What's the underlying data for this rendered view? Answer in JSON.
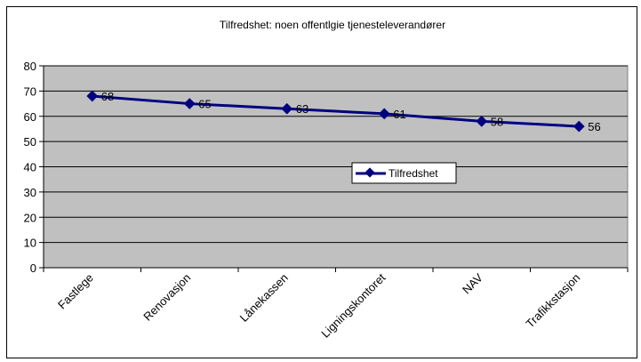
{
  "chart_data": {
    "type": "line",
    "title": "Tilfredshet: noen offentlgie tjenesteleverandører",
    "xlabel": "",
    "ylabel": "",
    "categories": [
      "Fastlege",
      "Renovasjon",
      "Lånekassen",
      "Ligningskontoret",
      "NAV",
      "Trafikkstasjon"
    ],
    "series": [
      {
        "name": "Tilfredshet",
        "values": [
          68,
          65,
          63,
          61,
          58,
          56
        ],
        "color": "#000080"
      }
    ],
    "data_labels": [
      "68",
      "65",
      "63",
      "61",
      "58",
      "56"
    ],
    "ylim": [
      0,
      80
    ],
    "yticks": [
      0,
      10,
      20,
      30,
      40,
      50,
      60,
      70,
      80
    ],
    "grid": true,
    "plot_background": "#c0c0c0",
    "legend_position": "inside-right",
    "marker": "diamond"
  }
}
